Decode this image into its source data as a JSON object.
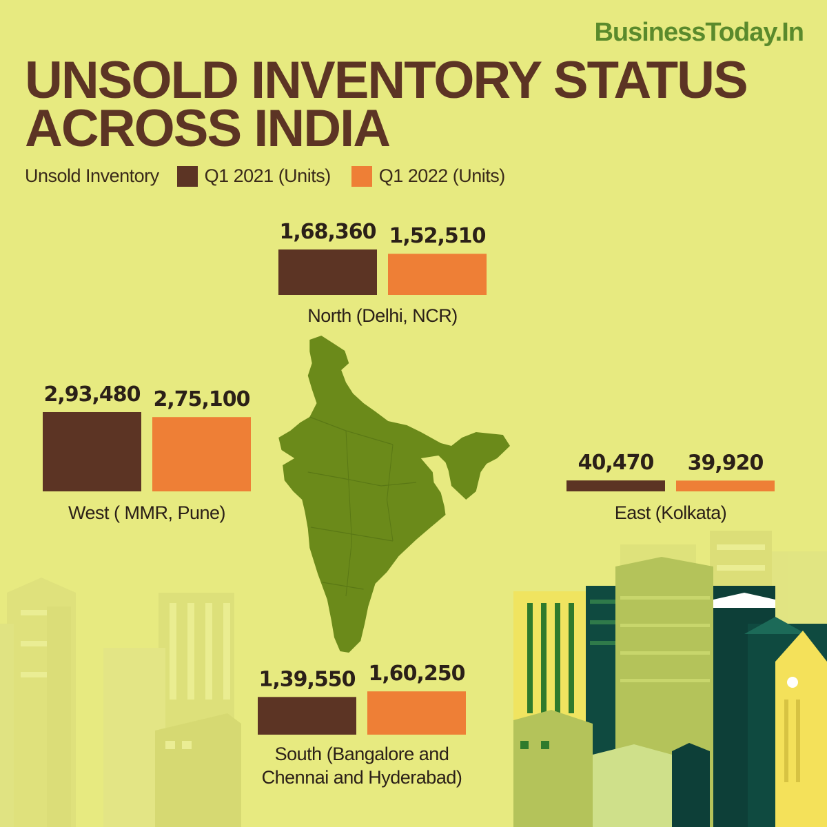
{
  "brand": {
    "text": "BusinessToday.In",
    "color": "#5a8a2c"
  },
  "title": {
    "line1": "UNSOLD INVENTORY STATUS",
    "line2": "ACROSS INDIA"
  },
  "legend": {
    "label": "Unsold Inventory",
    "items": [
      {
        "name": "Q1 2021 (Units)",
        "color": "#5c3424"
      },
      {
        "name": "Q1 2022 (Units)",
        "color": "#ee7f36"
      }
    ]
  },
  "colors": {
    "background": "#e7ea80",
    "map": "#6b8a1a",
    "text": "#2b2018"
  },
  "chart_data": {
    "type": "bar",
    "title": "UNSOLD INVENTORY STATUS ACROSS INDIA",
    "ylabel": "",
    "series": [
      {
        "name": "Q1 2021 (Units)",
        "color": "#5c3424"
      },
      {
        "name": "Q1 2022 (Units)",
        "color": "#ee7f36"
      }
    ],
    "regions": [
      {
        "name": "North (Delhi, NCR)",
        "values": [
          168360,
          152510
        ],
        "labels": [
          "1,68,360",
          "1,52,510"
        ]
      },
      {
        "name": "West ( MMR, Pune)",
        "values": [
          293480,
          275100
        ],
        "labels": [
          "2,93,480",
          "2,75,100"
        ]
      },
      {
        "name": "East (Kolkata)",
        "values": [
          40470,
          39920
        ],
        "labels": [
          "40,470",
          "39,920"
        ]
      },
      {
        "name": "South (Bangalore and Chennai and Hyderabad)",
        "lines": [
          "South (Bangalore and",
          "Chennai and Hyderabad)"
        ],
        "values": [
          139550,
          160250
        ],
        "labels": [
          "1,39,550",
          "1,60,250"
        ]
      }
    ]
  }
}
